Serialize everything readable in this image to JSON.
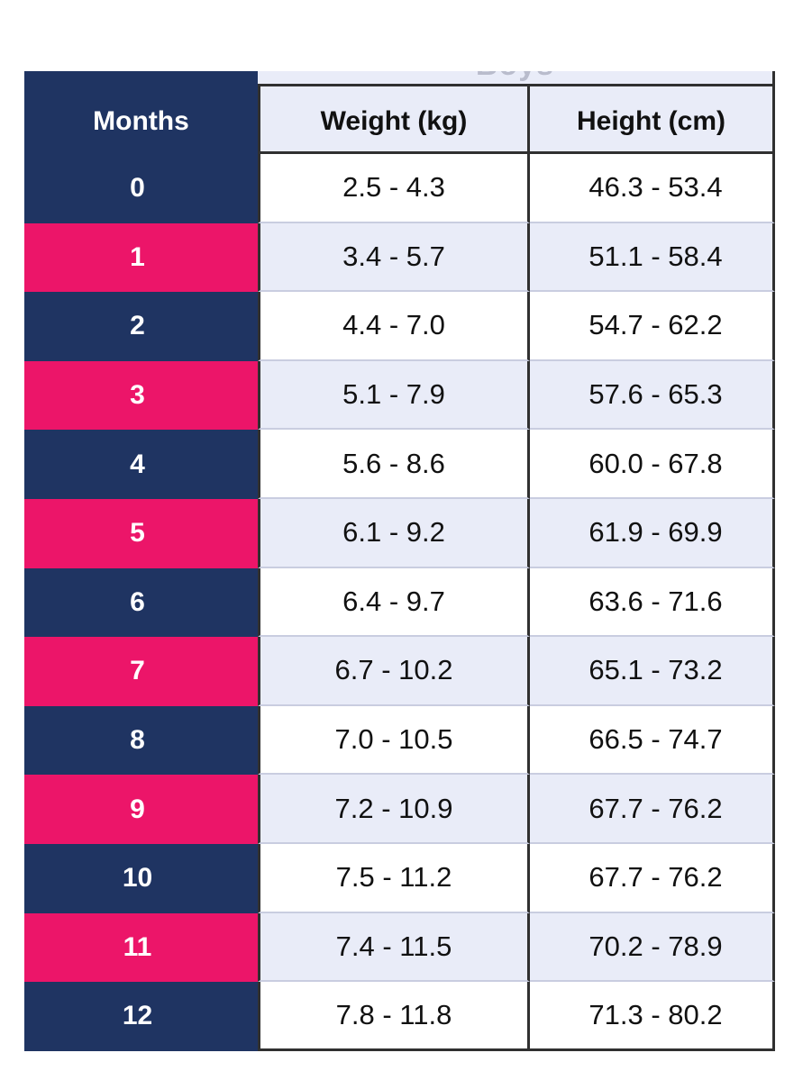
{
  "title_partial": "Boys",
  "header": {
    "months": "Months",
    "weight": "Weight (kg)",
    "height": "Height (cm)"
  },
  "colors": {
    "navy": "#1f3462",
    "pink": "#ec1569",
    "lavender": "#e9ecf8"
  },
  "rows": [
    {
      "month": "0",
      "weight": "2.5 - 4.3",
      "height": "46.3 - 53.4"
    },
    {
      "month": "1",
      "weight": "3.4 - 5.7",
      "height": "51.1 - 58.4"
    },
    {
      "month": "2",
      "weight": "4.4 - 7.0",
      "height": "54.7 - 62.2"
    },
    {
      "month": "3",
      "weight": "5.1 - 7.9",
      "height": "57.6 - 65.3"
    },
    {
      "month": "4",
      "weight": "5.6 - 8.6",
      "height": "60.0 - 67.8"
    },
    {
      "month": "5",
      "weight": "6.1 - 9.2",
      "height": "61.9 - 69.9"
    },
    {
      "month": "6",
      "weight": "6.4 - 9.7",
      "height": "63.6 - 71.6"
    },
    {
      "month": "7",
      "weight": "6.7 - 10.2",
      "height": "65.1 - 73.2"
    },
    {
      "month": "8",
      "weight": "7.0 - 10.5",
      "height": "66.5 - 74.7"
    },
    {
      "month": "9",
      "weight": "7.2 - 10.9",
      "height": "67.7 - 76.2"
    },
    {
      "month": "10",
      "weight": "7.5 - 11.2",
      "height": "67.7 - 76.2"
    },
    {
      "month": "11",
      "weight": "7.4 - 11.5",
      "height": "70.2 - 78.9"
    },
    {
      "month": "12",
      "weight": "7.8 - 11.8",
      "height": "71.3 - 80.2"
    }
  ]
}
